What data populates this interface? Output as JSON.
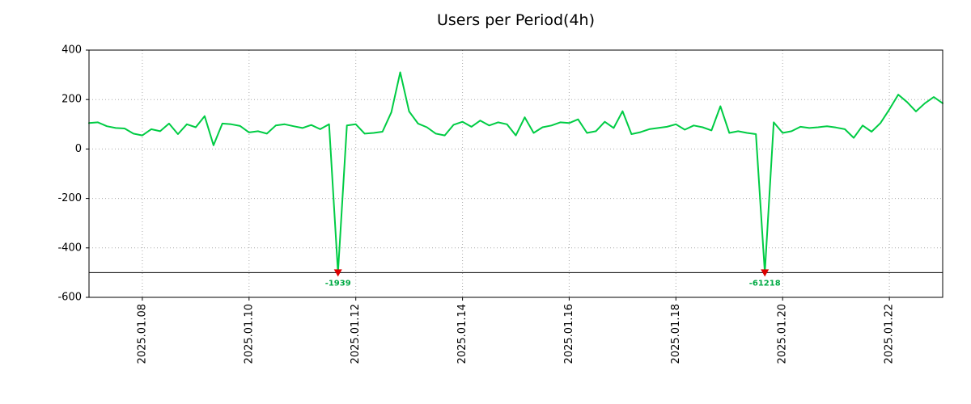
{
  "chart_data": {
    "type": "line",
    "title": "Users per Period(4h)",
    "xlabel": "",
    "ylabel": "",
    "x_start": "2025-01-07",
    "x_step_hours": 4,
    "xlim": [
      0,
      96
    ],
    "ylim": [
      -600,
      400
    ],
    "grid": true,
    "legend": "none",
    "clip_floor": -500,
    "yticks": [
      {
        "value": 400,
        "label": "400"
      },
      {
        "value": 200,
        "label": "200"
      },
      {
        "value": 0,
        "label": "0"
      },
      {
        "value": -200,
        "label": "-200"
      },
      {
        "value": -400,
        "label": "-400"
      },
      {
        "value": -600,
        "label": "-600"
      }
    ],
    "xticks": [
      {
        "index": 6,
        "label": "2025.01.08"
      },
      {
        "index": 18,
        "label": "2025.01.10"
      },
      {
        "index": 30,
        "label": "2025.01.12"
      },
      {
        "index": 42,
        "label": "2025.01.14"
      },
      {
        "index": 54,
        "label": "2025.01.16"
      },
      {
        "index": 66,
        "label": "2025.01.18"
      },
      {
        "index": 78,
        "label": "2025.01.20"
      },
      {
        "index": 90,
        "label": "2025.01.22"
      }
    ],
    "series": [
      {
        "name": "users",
        "color": "#00CC44",
        "values": [
          105,
          108,
          92,
          85,
          83,
          62,
          55,
          80,
          72,
          103,
          60,
          100,
          88,
          133,
          15,
          103,
          100,
          93,
          67,
          72,
          62,
          95,
          100,
          92,
          85,
          97,
          80,
          100,
          -1939,
          95,
          100,
          62,
          65,
          70,
          148,
          310,
          152,
          103,
          88,
          62,
          55,
          98,
          110,
          90,
          115,
          95,
          108,
          100,
          55,
          128,
          65,
          88,
          95,
          108,
          105,
          120,
          65,
          72,
          110,
          85,
          153,
          60,
          68,
          80,
          85,
          90,
          100,
          78,
          95,
          88,
          75,
          173,
          65,
          72,
          65,
          60,
          -61218,
          108,
          65,
          72,
          90,
          85,
          88,
          92,
          87,
          80,
          45,
          95,
          70,
          105,
          160,
          220,
          190,
          152,
          185,
          210,
          185
        ]
      }
    ],
    "annotations": [
      {
        "index": 28,
        "value": -1939,
        "label": "-1939"
      },
      {
        "index": 76,
        "value": -61218,
        "label": "-61218"
      }
    ],
    "colors": {
      "line": "#00CC44",
      "marker": "#DD0000",
      "annotation_text": "#00AA44",
      "grid": "#AAAAAA",
      "axis": "#000000",
      "clip_line": "#000000",
      "background": "#FFFFFF"
    }
  }
}
